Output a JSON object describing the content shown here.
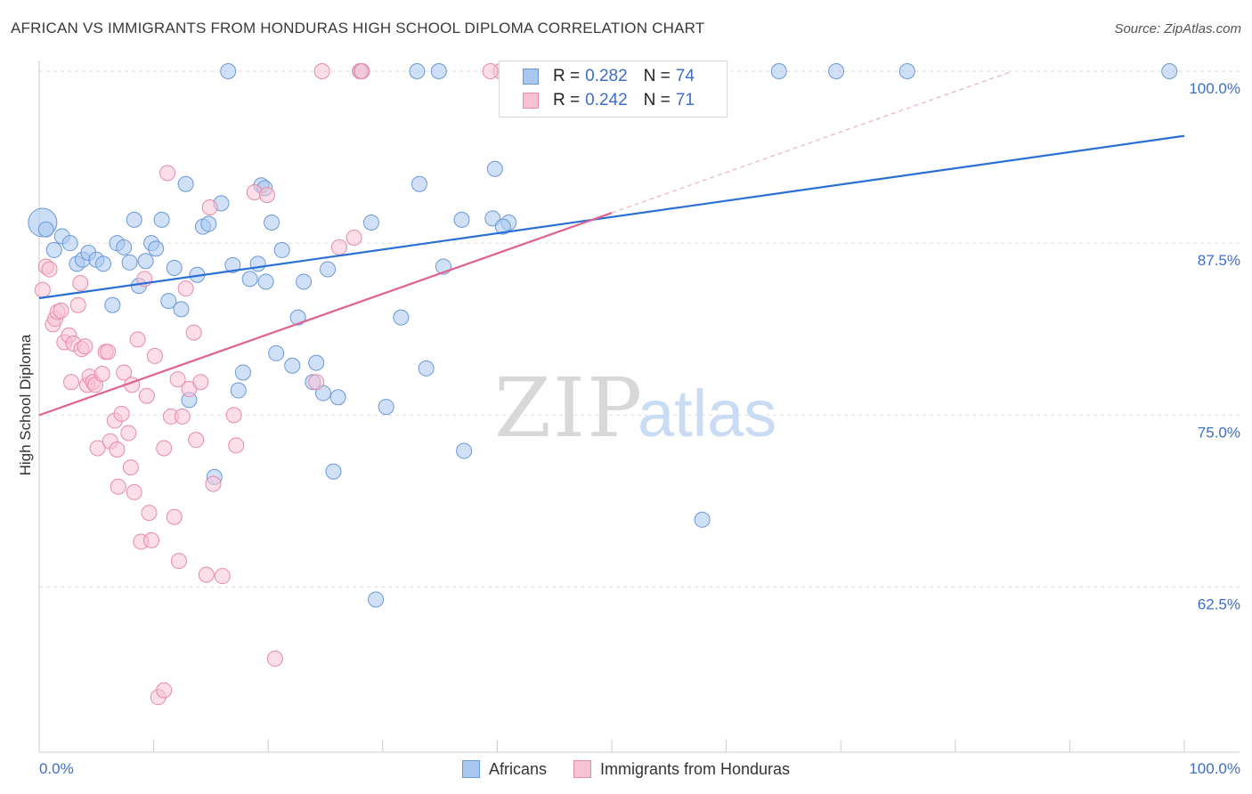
{
  "title": "AFRICAN VS IMMIGRANTS FROM HONDURAS HIGH SCHOOL DIPLOMA CORRELATION CHART",
  "source": "Source: ZipAtlas.com",
  "watermark": {
    "zip": "ZIP",
    "atlas": "atlas"
  },
  "legend_top": {
    "rows": [
      {
        "r_label": "R = ",
        "r_value": "0.282",
        "n_label": "N = ",
        "n_value": "74",
        "color": "#a9c8f0",
        "border": "#6b98d8"
      },
      {
        "r_label": "R = ",
        "r_value": "0.242",
        "n_label": "N = ",
        "n_value": "71",
        "color": "#f7c3d4",
        "border": "#e88aa9"
      }
    ]
  },
  "legend_bottom": [
    {
      "label": "Africans",
      "color": "#a9c8f0",
      "border": "#6b98d8"
    },
    {
      "label": "Immigrants from Honduras",
      "color": "#f7c3d4",
      "border": "#e88aa9"
    }
  ],
  "chart_data": {
    "type": "scatter",
    "title": "AFRICAN VS IMMIGRANTS FROM HONDURAS HIGH SCHOOL DIPLOMA CORRELATION CHART",
    "xlabel": "",
    "ylabel": "High School Diploma",
    "xlim": [
      0,
      100
    ],
    "ylim": [
      50.5,
      102
    ],
    "x_tick_labels": [
      "0.0%",
      "100.0%"
    ],
    "y_ticks": [
      62.5,
      75.0,
      87.5,
      100.0
    ],
    "y_tick_labels": [
      "62.5%",
      "75.0%",
      "87.5%",
      "100.0%"
    ],
    "grid": true,
    "colors": {
      "africans": "#6b98d8",
      "africans_fill": "#a9c8f0",
      "honduras": "#e88aa9",
      "honduras_fill": "#f7c3d4",
      "africans_line": "#2a6fd6",
      "honduras_line": "#e0628e"
    },
    "series": [
      {
        "name": "Africans",
        "trend": {
          "x0": 0,
          "y0": 83.5,
          "x1": 100,
          "y1": 95.3
        },
        "points": [
          [
            0.3,
            89.0
          ],
          [
            0.6,
            88.5
          ],
          [
            1.3,
            87.0
          ],
          [
            2.0,
            88.0
          ],
          [
            2.7,
            87.5
          ],
          [
            3.3,
            86.0
          ],
          [
            3.8,
            86.3
          ],
          [
            4.3,
            86.8
          ],
          [
            5.0,
            86.3
          ],
          [
            5.6,
            86.0
          ],
          [
            6.4,
            83.0
          ],
          [
            6.8,
            87.5
          ],
          [
            7.4,
            87.2
          ],
          [
            7.9,
            86.1
          ],
          [
            8.3,
            89.2
          ],
          [
            8.7,
            84.4
          ],
          [
            9.3,
            86.2
          ],
          [
            9.8,
            87.5
          ],
          [
            10.2,
            87.1
          ],
          [
            10.7,
            89.2
          ],
          [
            11.3,
            83.3
          ],
          [
            11.8,
            85.7
          ],
          [
            12.4,
            82.7
          ],
          [
            12.8,
            91.8
          ],
          [
            13.1,
            76.1
          ],
          [
            13.8,
            85.2
          ],
          [
            14.3,
            88.7
          ],
          [
            14.8,
            88.9
          ],
          [
            15.3,
            70.5
          ],
          [
            15.9,
            90.4
          ],
          [
            16.5,
            100.0
          ],
          [
            16.9,
            85.9
          ],
          [
            17.4,
            76.8
          ],
          [
            17.8,
            78.1
          ],
          [
            18.4,
            84.9
          ],
          [
            19.1,
            86.0
          ],
          [
            19.4,
            91.7
          ],
          [
            19.7,
            91.5
          ],
          [
            19.8,
            84.7
          ],
          [
            20.3,
            89.0
          ],
          [
            20.7,
            79.5
          ],
          [
            21.2,
            87.0
          ],
          [
            22.1,
            78.6
          ],
          [
            22.6,
            82.1
          ],
          [
            23.1,
            84.7
          ],
          [
            23.9,
            77.4
          ],
          [
            24.2,
            78.8
          ],
          [
            24.8,
            76.6
          ],
          [
            25.2,
            85.6
          ],
          [
            26.1,
            76.3
          ],
          [
            25.7,
            70.9
          ],
          [
            28.1,
            100.0
          ],
          [
            29.4,
            61.6
          ],
          [
            29.0,
            89.0
          ],
          [
            30.3,
            75.6
          ],
          [
            31.6,
            82.1
          ],
          [
            33.0,
            100.0
          ],
          [
            33.2,
            91.8
          ],
          [
            33.8,
            78.4
          ],
          [
            34.9,
            100.0
          ],
          [
            35.3,
            85.8
          ],
          [
            36.9,
            89.2
          ],
          [
            37.1,
            72.4
          ],
          [
            39.6,
            89.3
          ],
          [
            39.8,
            92.9
          ],
          [
            41.0,
            89.0
          ],
          [
            44.1,
            100.0
          ],
          [
            45.5,
            99.2
          ],
          [
            57.9,
            67.4
          ],
          [
            64.6,
            100.0
          ],
          [
            69.6,
            100.0
          ],
          [
            75.8,
            100.0
          ],
          [
            98.7,
            100.0
          ],
          [
            40.5,
            88.7
          ]
        ]
      },
      {
        "name": "Immigrants from Honduras",
        "trend": {
          "x0": 0,
          "y0": 75.0,
          "x1": 50,
          "y1": 89.7
        },
        "trend_ext": {
          "x0": 50,
          "y0": 89.7,
          "x1": 85,
          "y1": 100.0
        },
        "points": [
          [
            0.3,
            84.1
          ],
          [
            0.6,
            85.8
          ],
          [
            0.9,
            85.6
          ],
          [
            1.2,
            81.6
          ],
          [
            1.4,
            82.0
          ],
          [
            1.6,
            82.5
          ],
          [
            1.9,
            82.6
          ],
          [
            2.2,
            80.3
          ],
          [
            2.6,
            80.8
          ],
          [
            2.8,
            77.4
          ],
          [
            3.0,
            80.2
          ],
          [
            3.4,
            83.0
          ],
          [
            3.6,
            84.6
          ],
          [
            3.7,
            79.8
          ],
          [
            4.0,
            80.0
          ],
          [
            4.2,
            77.2
          ],
          [
            4.4,
            77.8
          ],
          [
            4.7,
            77.4
          ],
          [
            4.9,
            77.2
          ],
          [
            5.1,
            72.6
          ],
          [
            5.5,
            78.0
          ],
          [
            5.8,
            79.6
          ],
          [
            6.0,
            79.6
          ],
          [
            6.2,
            73.1
          ],
          [
            6.6,
            74.6
          ],
          [
            6.8,
            72.5
          ],
          [
            6.9,
            69.8
          ],
          [
            7.2,
            75.1
          ],
          [
            7.4,
            78.1
          ],
          [
            7.8,
            73.7
          ],
          [
            8.0,
            71.2
          ],
          [
            8.1,
            77.2
          ],
          [
            8.3,
            69.4
          ],
          [
            8.6,
            80.5
          ],
          [
            8.9,
            65.8
          ],
          [
            9.2,
            84.9
          ],
          [
            9.4,
            76.4
          ],
          [
            9.6,
            67.9
          ],
          [
            9.8,
            65.9
          ],
          [
            10.1,
            79.3
          ],
          [
            10.4,
            54.5
          ],
          [
            10.9,
            72.6
          ],
          [
            10.9,
            55.0
          ],
          [
            11.2,
            92.6
          ],
          [
            11.5,
            74.9
          ],
          [
            11.8,
            67.6
          ],
          [
            12.1,
            77.6
          ],
          [
            12.2,
            64.4
          ],
          [
            12.5,
            74.9
          ],
          [
            12.8,
            84.2
          ],
          [
            13.1,
            76.9
          ],
          [
            13.5,
            81.0
          ],
          [
            13.7,
            73.2
          ],
          [
            14.1,
            77.4
          ],
          [
            14.6,
            63.4
          ],
          [
            14.9,
            90.1
          ],
          [
            15.2,
            70.0
          ],
          [
            16.0,
            63.3
          ],
          [
            17.0,
            75.0
          ],
          [
            17.2,
            72.8
          ],
          [
            18.8,
            91.2
          ],
          [
            19.9,
            91.0
          ],
          [
            20.6,
            57.3
          ],
          [
            24.2,
            77.4
          ],
          [
            24.7,
            100.0
          ],
          [
            26.2,
            87.2
          ],
          [
            27.5,
            87.9
          ],
          [
            28.0,
            100.0
          ],
          [
            28.2,
            100.0
          ],
          [
            40.3,
            100.0
          ],
          [
            39.4,
            100.0
          ]
        ]
      }
    ]
  }
}
